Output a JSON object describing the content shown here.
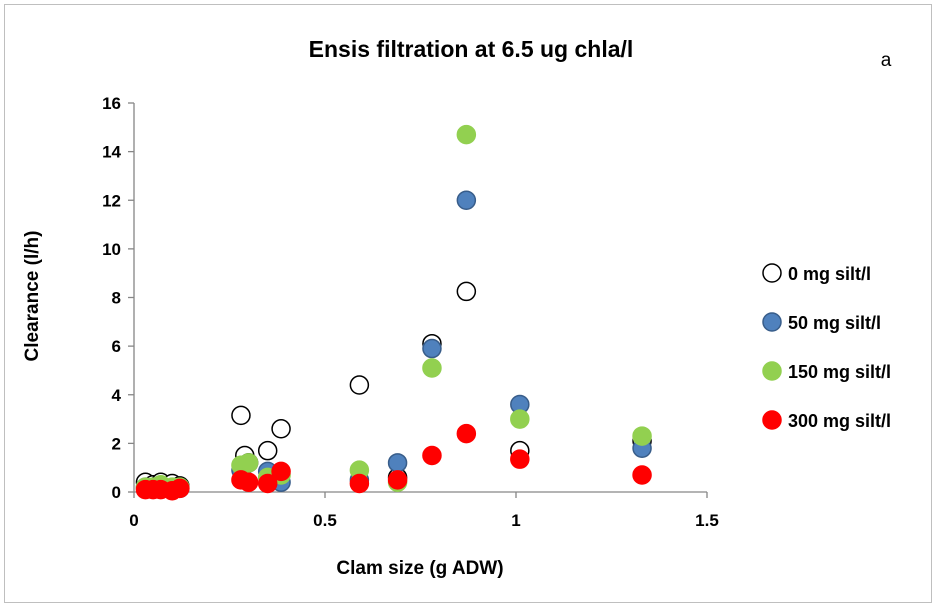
{
  "chart_data": {
    "type": "scatter",
    "title": "Ensis filtration at 6.5 ug chla/l",
    "panel_label": "a",
    "xlabel": "Clam size (g ADW)",
    "ylabel": "Clearance (l/h)",
    "xlim": [
      0,
      1.5
    ],
    "ylim": [
      0,
      16
    ],
    "x_ticks": [
      0,
      0.5,
      1,
      1.5
    ],
    "x_tick_labels": [
      "0",
      "0.5",
      "1",
      "1.5"
    ],
    "y_ticks": [
      0,
      2,
      4,
      6,
      8,
      10,
      12,
      14,
      16
    ],
    "y_tick_labels": [
      "0",
      "2",
      "4",
      "6",
      "8",
      "10",
      "12",
      "14",
      "16"
    ],
    "grid": false,
    "legend_position": "right",
    "series": [
      {
        "name": "0 mg silt/l",
        "fill": "#ffffff",
        "stroke": "#000000",
        "points": [
          [
            0.03,
            0.4
          ],
          [
            0.05,
            0.3
          ],
          [
            0.07,
            0.4
          ],
          [
            0.1,
            0.35
          ],
          [
            0.12,
            0.25
          ],
          [
            0.28,
            3.15
          ],
          [
            0.29,
            1.5
          ],
          [
            0.3,
            1.2
          ],
          [
            0.35,
            1.7
          ],
          [
            0.385,
            2.6
          ],
          [
            0.59,
            4.4
          ],
          [
            0.69,
            0.6
          ],
          [
            0.78,
            6.1
          ],
          [
            0.87,
            8.25
          ],
          [
            1.01,
            1.7
          ],
          [
            1.33,
            2.1
          ]
        ]
      },
      {
        "name": "50 mg silt/l",
        "fill": "#4f81bd",
        "stroke": "#385d8a",
        "points": [
          [
            0.03,
            0.2
          ],
          [
            0.05,
            0.15
          ],
          [
            0.07,
            0.2
          ],
          [
            0.1,
            0.15
          ],
          [
            0.12,
            0.15
          ],
          [
            0.28,
            0.9
          ],
          [
            0.29,
            1.1
          ],
          [
            0.35,
            0.85
          ],
          [
            0.385,
            0.4
          ],
          [
            0.59,
            0.5
          ],
          [
            0.69,
            1.2
          ],
          [
            0.78,
            5.9
          ],
          [
            0.87,
            12.0
          ],
          [
            1.01,
            3.6
          ],
          [
            1.33,
            1.8
          ]
        ]
      },
      {
        "name": "150 mg silt/l",
        "fill": "#92d050",
        "stroke": "#92d050",
        "points": [
          [
            0.03,
            0.2
          ],
          [
            0.05,
            0.2
          ],
          [
            0.07,
            0.3
          ],
          [
            0.1,
            0.2
          ],
          [
            0.12,
            0.2
          ],
          [
            0.28,
            1.1
          ],
          [
            0.3,
            1.2
          ],
          [
            0.35,
            0.6
          ],
          [
            0.385,
            0.7
          ],
          [
            0.59,
            0.9
          ],
          [
            0.69,
            0.4
          ],
          [
            0.78,
            5.1
          ],
          [
            0.87,
            14.7
          ],
          [
            1.01,
            3.0
          ],
          [
            1.33,
            2.3
          ]
        ]
      },
      {
        "name": "300 mg silt/l",
        "fill": "#ff0000",
        "stroke": "#ff0000",
        "points": [
          [
            0.03,
            0.1
          ],
          [
            0.05,
            0.1
          ],
          [
            0.07,
            0.1
          ],
          [
            0.1,
            0.05
          ],
          [
            0.12,
            0.15
          ],
          [
            0.28,
            0.5
          ],
          [
            0.3,
            0.4
          ],
          [
            0.35,
            0.35
          ],
          [
            0.385,
            0.85
          ],
          [
            0.59,
            0.35
          ],
          [
            0.69,
            0.5
          ],
          [
            0.78,
            1.5
          ],
          [
            0.87,
            2.4
          ],
          [
            1.01,
            1.35
          ],
          [
            1.33,
            0.7
          ]
        ]
      }
    ]
  }
}
